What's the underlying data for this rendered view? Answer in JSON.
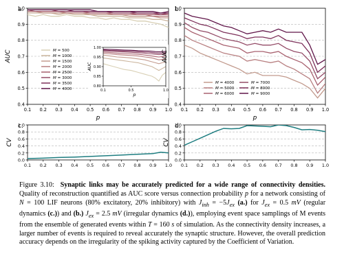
{
  "colors": {
    "scale": [
      "#d8cfb4",
      "#cbb59d",
      "#c29a8d",
      "#b87f80",
      "#a8616f",
      "#934a66",
      "#7c2f59",
      "#5f1448"
    ],
    "cv": "#1d7d80",
    "grid": "#b5b5b5"
  },
  "chart_data": [
    {
      "panel": "a",
      "type": "line",
      "ylabel": "AUC",
      "xlabel": "p",
      "xlim": [
        0.1,
        1.0
      ],
      "ylim": [
        0.4,
        1.0
      ],
      "xticks": [
        "0.1",
        "0.2",
        "0.3",
        "0.4",
        "0.5",
        "0.6",
        "0.7",
        "0.8",
        "0.9",
        "1.0"
      ],
      "yticks": [
        "0.4",
        "0.5",
        "0.6",
        "0.7",
        "0.8",
        "0.9",
        "1.0"
      ],
      "grid": true,
      "x": [
        0.05,
        0.1,
        0.15,
        0.2,
        0.25,
        0.3,
        0.35,
        0.4,
        0.45,
        0.5,
        0.55,
        0.6,
        0.65,
        0.7,
        0.75,
        0.8,
        0.85,
        0.9,
        0.95,
        1.0
      ],
      "series": [
        {
          "name": "M = 500",
          "values": [
            0.97,
            0.96,
            0.95,
            0.96,
            0.95,
            0.95,
            0.96,
            0.95,
            0.95,
            0.94,
            0.94,
            0.93,
            0.94,
            0.93,
            0.93,
            0.92,
            0.92,
            0.91,
            0.9,
            0.88
          ]
        },
        {
          "name": "M = 1000",
          "values": [
            0.98,
            0.97,
            0.97,
            0.97,
            0.97,
            0.96,
            0.97,
            0.96,
            0.96,
            0.96,
            0.95,
            0.95,
            0.95,
            0.95,
            0.94,
            0.94,
            0.94,
            0.93,
            0.93,
            0.92
          ]
        },
        {
          "name": "M = 1500",
          "values": [
            0.98,
            0.98,
            0.98,
            0.97,
            0.97,
            0.97,
            0.97,
            0.97,
            0.97,
            0.96,
            0.96,
            0.96,
            0.96,
            0.96,
            0.95,
            0.95,
            0.95,
            0.95,
            0.94,
            0.94
          ]
        },
        {
          "name": "M = 2000",
          "values": [
            0.99,
            0.98,
            0.98,
            0.98,
            0.98,
            0.98,
            0.97,
            0.97,
            0.97,
            0.97,
            0.97,
            0.97,
            0.96,
            0.96,
            0.96,
            0.96,
            0.96,
            0.95,
            0.95,
            0.95
          ]
        },
        {
          "name": "M = 2500",
          "values": [
            0.99,
            0.99,
            0.98,
            0.98,
            0.98,
            0.98,
            0.98,
            0.98,
            0.98,
            0.97,
            0.97,
            0.97,
            0.97,
            0.97,
            0.97,
            0.96,
            0.96,
            0.96,
            0.96,
            0.96
          ]
        },
        {
          "name": "M = 3000",
          "values": [
            0.99,
            0.99,
            0.99,
            0.99,
            0.99,
            0.98,
            0.98,
            0.98,
            0.98,
            0.98,
            0.98,
            0.98,
            0.97,
            0.97,
            0.97,
            0.97,
            0.97,
            0.97,
            0.96,
            0.97
          ]
        },
        {
          "name": "M = 3500",
          "values": [
            0.99,
            0.99,
            0.99,
            0.99,
            0.99,
            0.99,
            0.99,
            0.98,
            0.98,
            0.98,
            0.98,
            0.98,
            0.98,
            0.98,
            0.98,
            0.97,
            0.97,
            0.97,
            0.97,
            0.97
          ]
        },
        {
          "name": "M = 4000",
          "values": [
            1.0,
            0.99,
            0.99,
            0.99,
            0.99,
            0.99,
            0.99,
            0.99,
            0.99,
            0.99,
            0.98,
            0.98,
            0.98,
            0.98,
            0.98,
            0.98,
            0.98,
            0.98,
            0.97,
            0.98
          ]
        }
      ],
      "legend": "lower-left",
      "inset": {
        "xlabel": "p",
        "ylabel": "AUC",
        "xlim": [
          0.1,
          1.0
        ],
        "ylim": [
          0.8,
          1.0
        ],
        "xticks": [
          "0.1",
          "0.5",
          "1.0"
        ],
        "yticks": [
          "0.80",
          "0.85",
          "0.90",
          "0.95",
          "1.00"
        ],
        "x": [
          0.1,
          0.2,
          0.3,
          0.4,
          0.5,
          0.6,
          0.7,
          0.75,
          0.8,
          0.85,
          0.9,
          0.95,
          1.0
        ],
        "series": [
          {
            "name": "M = 500",
            "values": [
              0.915,
              0.905,
              0.895,
              0.885,
              0.88,
              0.87,
              0.86,
              0.855,
              0.85,
              0.84,
              0.825,
              0.855,
              0.87
            ]
          },
          {
            "name": "M = 1000",
            "values": [
              0.945,
              0.94,
              0.935,
              0.93,
              0.925,
              0.92,
              0.91,
              0.905,
              0.9,
              0.89,
              0.88,
              0.89,
              0.9
            ]
          },
          {
            "name": "M = 1500",
            "values": [
              0.96,
              0.955,
              0.95,
              0.948,
              0.945,
              0.94,
              0.935,
              0.93,
              0.925,
              0.92,
              0.915,
              0.92,
              0.925
            ]
          },
          {
            "name": "M = 2000",
            "values": [
              0.97,
              0.966,
              0.962,
              0.96,
              0.958,
              0.955,
              0.95,
              0.948,
              0.945,
              0.94,
              0.935,
              0.938,
              0.942
            ]
          },
          {
            "name": "M = 2500",
            "values": [
              0.976,
              0.973,
              0.97,
              0.968,
              0.966,
              0.964,
              0.96,
              0.958,
              0.955,
              0.952,
              0.95,
              0.952,
              0.955
            ]
          },
          {
            "name": "M = 3000",
            "values": [
              0.982,
              0.98,
              0.978,
              0.976,
              0.974,
              0.972,
              0.97,
              0.968,
              0.966,
              0.964,
              0.962,
              0.964,
              0.966
            ]
          },
          {
            "name": "M = 3500",
            "values": [
              0.986,
              0.984,
              0.983,
              0.981,
              0.98,
              0.978,
              0.976,
              0.975,
              0.973,
              0.971,
              0.97,
              0.971,
              0.972
            ]
          },
          {
            "name": "M = 4000",
            "values": [
              0.99,
              0.989,
              0.988,
              0.986,
              0.985,
              0.983,
              0.982,
              0.981,
              0.98,
              0.978,
              0.977,
              0.978,
              0.979
            ]
          }
        ]
      }
    },
    {
      "panel": "b",
      "type": "line",
      "ylabel": "AUC",
      "xlabel": "p",
      "xlim": [
        0.1,
        1.0
      ],
      "ylim": [
        0.4,
        1.0
      ],
      "xticks": [
        "0.1",
        "0.2",
        "0.3",
        "0.4",
        "0.5",
        "0.6",
        "0.7",
        "0.8",
        "0.9",
        "1.0"
      ],
      "yticks": [
        "0.4",
        "0.5",
        "0.6",
        "0.7",
        "0.8",
        "0.9",
        "1.0"
      ],
      "grid": true,
      "x": [
        0.05,
        0.1,
        0.15,
        0.2,
        0.25,
        0.3,
        0.35,
        0.4,
        0.45,
        0.5,
        0.55,
        0.6,
        0.65,
        0.7,
        0.75,
        0.8,
        0.85,
        0.9,
        0.95,
        1.0
      ],
      "series": [
        {
          "name": "M = 4000",
          "values": [
            0.81,
            0.77,
            0.75,
            0.72,
            0.7,
            0.68,
            0.66,
            0.64,
            0.62,
            0.59,
            0.6,
            0.58,
            0.58,
            0.58,
            0.57,
            0.55,
            0.53,
            0.5,
            0.44,
            0.5
          ]
        },
        {
          "name": "M = 5000",
          "values": [
            0.87,
            0.83,
            0.8,
            0.78,
            0.76,
            0.74,
            0.72,
            0.71,
            0.7,
            0.67,
            0.68,
            0.67,
            0.66,
            0.67,
            0.64,
            0.62,
            0.59,
            0.56,
            0.47,
            0.53
          ]
        },
        {
          "name": "M = 6000",
          "values": [
            0.91,
            0.88,
            0.85,
            0.83,
            0.81,
            0.79,
            0.77,
            0.76,
            0.75,
            0.72,
            0.73,
            0.73,
            0.72,
            0.73,
            0.7,
            0.68,
            0.66,
            0.62,
            0.52,
            0.57
          ]
        },
        {
          "name": "M = 7000",
          "values": [
            0.94,
            0.91,
            0.88,
            0.86,
            0.85,
            0.83,
            0.81,
            0.8,
            0.79,
            0.77,
            0.78,
            0.77,
            0.77,
            0.78,
            0.75,
            0.73,
            0.72,
            0.67,
            0.56,
            0.6
          ]
        },
        {
          "name": "M = 8000",
          "values": [
            0.96,
            0.94,
            0.92,
            0.9,
            0.89,
            0.87,
            0.85,
            0.84,
            0.83,
            0.81,
            0.82,
            0.82,
            0.81,
            0.83,
            0.8,
            0.79,
            0.78,
            0.72,
            0.6,
            0.64
          ]
        },
        {
          "name": "M = 9000",
          "values": [
            0.98,
            0.97,
            0.95,
            0.94,
            0.93,
            0.91,
            0.89,
            0.88,
            0.86,
            0.84,
            0.85,
            0.86,
            0.85,
            0.87,
            0.85,
            0.85,
            0.85,
            0.77,
            0.65,
            0.68
          ]
        }
      ],
      "legend": "lower-center"
    },
    {
      "panel": "c",
      "type": "line",
      "ylabel": "CV",
      "xlabel": "",
      "xlim": [
        0.1,
        1.0
      ],
      "ylim": [
        0.0,
        1.0
      ],
      "xticks": [
        "0.1",
        "0.2",
        "0.3",
        "0.4",
        "0.5",
        "0.6",
        "0.7",
        "0.8",
        "0.9",
        "1.0"
      ],
      "yticks": [
        "0.0",
        "0.2",
        "0.4",
        "0.6",
        "0.8",
        "1.0"
      ],
      "grid": true,
      "x": [
        0.05,
        0.1,
        0.2,
        0.3,
        0.4,
        0.5,
        0.6,
        0.7,
        0.8,
        0.9,
        0.95,
        1.0
      ],
      "values": [
        0.03,
        0.04,
        0.05,
        0.07,
        0.08,
        0.1,
        0.12,
        0.14,
        0.16,
        0.18,
        0.22,
        0.2
      ]
    },
    {
      "panel": "d",
      "type": "line",
      "ylabel": "CV",
      "xlabel": "",
      "xlim": [
        0.1,
        1.0
      ],
      "ylim": [
        0.0,
        1.0
      ],
      "xticks": [
        "0.1",
        "0.2",
        "0.3",
        "0.4",
        "0.5",
        "0.6",
        "0.7",
        "0.8",
        "0.9",
        "1.0"
      ],
      "yticks": [
        "0.0",
        "0.2",
        "0.4",
        "0.6",
        "0.8",
        "1.0"
      ],
      "grid": true,
      "x": [
        0.05,
        0.1,
        0.15,
        0.2,
        0.25,
        0.3,
        0.35,
        0.4,
        0.45,
        0.5,
        0.55,
        0.6,
        0.65,
        0.7,
        0.75,
        0.8,
        0.85,
        0.9,
        0.95,
        1.0
      ],
      "values": [
        0.32,
        0.42,
        0.52,
        0.62,
        0.72,
        0.82,
        0.9,
        0.89,
        0.9,
        0.98,
        0.97,
        0.96,
        0.95,
        1.0,
        0.98,
        0.93,
        0.86,
        0.87,
        0.85,
        0.81
      ]
    }
  ],
  "caption": {
    "figure_label": "Figure 3.10:",
    "bold_title": "Synaptic links may be accurately predicted for a wide range of connectivity densities.",
    "line1": "Quality of reconstruction quantified as AUC score versus connection probability",
    "p": "p",
    "t_net": "for a network consisting of",
    "N": "N",
    "eq100": "= 100 LIF neurons (80% excitatory, 20% inhibitory) with",
    "Jinh": "J",
    "inh_sub": "inh",
    "eq_neg5": "= −5",
    "Jex": "J",
    "ex_sub": "ex",
    "a_label": "(a.)",
    "t_for": "for",
    "eq_05": "= 0.5",
    "mV": "mV",
    "regdyn": "(regular dynamics",
    "c_label": "(c.)",
    "t_and": ") and",
    "b_label": "(b.)",
    "eq_25": "= 2.5",
    "irrdyn": "(irregular dynamics",
    "d_label": "(d.)",
    "rest1": "), employing event space samplings of M events from the ensemble of generated events within",
    "T": "T",
    "eq160": "= 160",
    "s": "s",
    "rest2": "of simulation. As the connectivity density increases, a larger number of events is required to reveal accurately the synaptic structure. However, the overall prediction accuracy depends on the irregularity of the spiking activity captured by the Coefficient of Variation."
  }
}
